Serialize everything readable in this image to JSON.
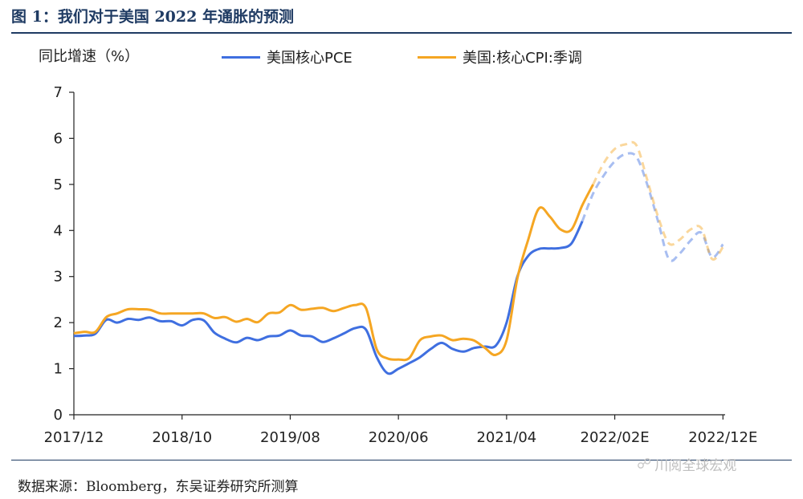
{
  "header": {
    "title": "图 1：我们对于美国 2022 年通胀的预测"
  },
  "footer": {
    "source": "数据来源：Bloomberg，东吴证券研究所测算"
  },
  "watermark": {
    "icon": "wechat-icon",
    "text": "川阅全球宏观"
  },
  "chart_data": {
    "type": "line",
    "ylabel": "同比增速（%）",
    "ylim": [
      0,
      7
    ],
    "yticks": [
      0,
      1,
      2,
      3,
      4,
      5,
      6,
      7
    ],
    "xlim": [
      0,
      60.2
    ],
    "xticks": [
      {
        "x": 0,
        "label": "2017/12"
      },
      {
        "x": 10,
        "label": "2018/10"
      },
      {
        "x": 20,
        "label": "2019/08"
      },
      {
        "x": 30,
        "label": "2020/06"
      },
      {
        "x": 40,
        "label": "2021/04"
      },
      {
        "x": 50,
        "label": "2022/02E"
      },
      {
        "x": 60,
        "label": "2022/12E"
      }
    ],
    "legend_position": "top",
    "series": [
      {
        "name": "美国核心PCE",
        "color": "#3f6fe0",
        "actual": [
          [
            0,
            1.71
          ],
          [
            1,
            1.72
          ],
          [
            2,
            1.76
          ],
          [
            3,
            2.06
          ],
          [
            4,
            2.0
          ],
          [
            5,
            2.08
          ],
          [
            6,
            2.06
          ],
          [
            7,
            2.11
          ],
          [
            8,
            2.03
          ],
          [
            9,
            2.03
          ],
          [
            10,
            1.94
          ],
          [
            11,
            2.06
          ],
          [
            12,
            2.05
          ],
          [
            13,
            1.78
          ],
          [
            14,
            1.65
          ],
          [
            15,
            1.57
          ],
          [
            16,
            1.67
          ],
          [
            17,
            1.62
          ],
          [
            18,
            1.7
          ],
          [
            19,
            1.72
          ],
          [
            20,
            1.83
          ],
          [
            21,
            1.72
          ],
          [
            22,
            1.7
          ],
          [
            23,
            1.58
          ],
          [
            24,
            1.66
          ],
          [
            25,
            1.77
          ],
          [
            26,
            1.88
          ],
          [
            27,
            1.85
          ],
          [
            28,
            1.25
          ],
          [
            29,
            0.9
          ],
          [
            30,
            1.0
          ],
          [
            31,
            1.12
          ],
          [
            32,
            1.25
          ],
          [
            33,
            1.43
          ],
          [
            34,
            1.56
          ],
          [
            35,
            1.43
          ],
          [
            36,
            1.37
          ],
          [
            37,
            1.45
          ],
          [
            38,
            1.48
          ],
          [
            39,
            1.5
          ],
          [
            40,
            2.0
          ],
          [
            41,
            3.0
          ],
          [
            42,
            3.45
          ],
          [
            43,
            3.6
          ],
          [
            44,
            3.61
          ],
          [
            45,
            3.62
          ],
          [
            46,
            3.72
          ],
          [
            47,
            4.2
          ]
        ],
        "forecast": [
          [
            47,
            4.2
          ],
          [
            48,
            4.8
          ],
          [
            49,
            5.2
          ],
          [
            50,
            5.5
          ],
          [
            51,
            5.66
          ],
          [
            52,
            5.6
          ],
          [
            53,
            5.0
          ],
          [
            54,
            4.2
          ],
          [
            55,
            3.38
          ],
          [
            56,
            3.5
          ],
          [
            57,
            3.78
          ],
          [
            58,
            3.95
          ],
          [
            59,
            3.42
          ],
          [
            60,
            3.7
          ]
        ]
      },
      {
        "name": "美国:核心CPI:季调",
        "color": "#f5a623",
        "actual": [
          [
            0,
            1.77
          ],
          [
            1,
            1.8
          ],
          [
            2,
            1.8
          ],
          [
            3,
            2.12
          ],
          [
            4,
            2.2
          ],
          [
            5,
            2.29
          ],
          [
            6,
            2.29
          ],
          [
            7,
            2.28
          ],
          [
            8,
            2.2
          ],
          [
            9,
            2.2
          ],
          [
            10,
            2.2
          ],
          [
            11,
            2.2
          ],
          [
            12,
            2.2
          ],
          [
            13,
            2.1
          ],
          [
            14,
            2.12
          ],
          [
            15,
            2.02
          ],
          [
            16,
            2.08
          ],
          [
            17,
            2.01
          ],
          [
            18,
            2.2
          ],
          [
            19,
            2.22
          ],
          [
            20,
            2.38
          ],
          [
            21,
            2.28
          ],
          [
            22,
            2.3
          ],
          [
            23,
            2.32
          ],
          [
            24,
            2.25
          ],
          [
            25,
            2.32
          ],
          [
            26,
            2.38
          ],
          [
            27,
            2.32
          ],
          [
            28,
            1.42
          ],
          [
            29,
            1.22
          ],
          [
            30,
            1.2
          ],
          [
            31,
            1.23
          ],
          [
            32,
            1.62
          ],
          [
            33,
            1.7
          ],
          [
            34,
            1.72
          ],
          [
            35,
            1.62
          ],
          [
            36,
            1.65
          ],
          [
            37,
            1.61
          ],
          [
            38,
            1.45
          ],
          [
            39,
            1.3
          ],
          [
            40,
            1.62
          ],
          [
            41,
            2.96
          ],
          [
            42,
            3.8
          ],
          [
            43,
            4.48
          ],
          [
            44,
            4.3
          ],
          [
            45,
            4.02
          ],
          [
            46,
            4.02
          ],
          [
            47,
            4.55
          ],
          [
            48,
            5.0
          ]
        ],
        "forecast": [
          [
            48,
            5.0
          ],
          [
            49,
            5.47
          ],
          [
            50,
            5.77
          ],
          [
            51,
            5.87
          ],
          [
            52,
            5.85
          ],
          [
            53,
            5.1
          ],
          [
            54,
            4.3
          ],
          [
            55,
            3.72
          ],
          [
            56,
            3.8
          ],
          [
            57,
            4.02
          ],
          [
            58,
            4.05
          ],
          [
            59,
            3.38
          ],
          [
            60,
            3.64
          ]
        ]
      }
    ]
  }
}
